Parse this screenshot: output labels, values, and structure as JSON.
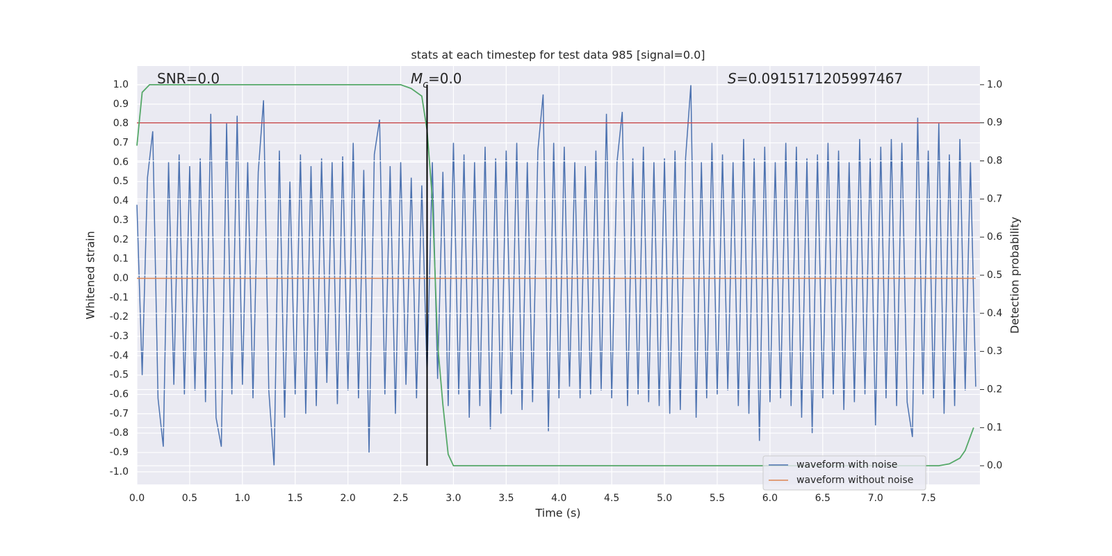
{
  "chart_data": {
    "type": "line",
    "title": "stats at each timestep for test data 985 [signal=0.0]",
    "xlabel": "Time (s)",
    "ylabel": "Whitened strain",
    "y2label": "Detection probability",
    "xlim": [
      0,
      7.99
    ],
    "ylim": [
      -1.065,
      1.097
    ],
    "y2lim": [
      -0.049,
      1.049
    ],
    "grid": true,
    "legend": "lower right",
    "xticks": [
      {
        "value": 0,
        "label": "0.0"
      },
      0.5,
      {
        "value": 1,
        "label": "1.0"
      },
      1.5,
      {
        "value": 2,
        "label": "2.0"
      },
      2.5,
      {
        "value": 3,
        "label": "3.0"
      },
      3.5,
      {
        "value": 4,
        "label": "4.0"
      },
      4.5,
      {
        "value": 5,
        "label": "5.0"
      },
      5.5,
      {
        "value": 6,
        "label": "6.0"
      },
      6.5,
      {
        "value": 7,
        "label": "7.0"
      },
      7.5
    ],
    "yticks": [
      {
        "value": -1,
        "label": "-1.0"
      },
      -0.9,
      -0.8,
      -0.7,
      -0.6,
      -0.5,
      -0.4,
      -0.3,
      -0.2,
      -0.1,
      {
        "value": 0,
        "label": "0.0"
      },
      0.1,
      0.2,
      0.3,
      0.4,
      0.5,
      0.6,
      0.7,
      0.8,
      0.9,
      {
        "value": 1,
        "label": "1.0"
      }
    ],
    "y2ticks": [
      {
        "value": 0,
        "label": "0.0"
      },
      0.1,
      0.2,
      0.3,
      0.4,
      0.5,
      0.6,
      0.7,
      0.8,
      0.9,
      {
        "value": 1,
        "label": "1.0"
      }
    ],
    "annotations": [
      {
        "text": "SNR=0.0"
      },
      {
        "italic": "M",
        "sub": "c",
        "text": "=0.0"
      },
      {
        "italic": "S",
        "text": "=0.0915171205997467"
      }
    ],
    "hlines": [
      {
        "value": 0.9,
        "axis": "y2",
        "color": "#c44e52"
      }
    ],
    "vlines": [
      {
        "x": 2.75,
        "y2": [
          0,
          1
        ],
        "color": "#000000"
      }
    ],
    "series": [
      {
        "name": "waveform with noise",
        "color": "#4c72b0",
        "x": [
          0,
          0.05,
          0.1,
          0.15,
          0.2,
          0.25,
          0.3,
          0.35,
          0.4,
          0.45,
          0.5,
          0.55,
          0.6,
          0.65,
          0.7,
          0.75,
          0.8,
          0.85,
          0.9,
          0.95,
          1,
          1.05,
          1.1,
          1.15,
          1.2,
          1.25,
          1.3,
          1.35,
          1.4,
          1.45,
          1.5,
          1.55,
          1.6,
          1.65,
          1.7,
          1.75,
          1.8,
          1.85,
          1.9,
          1.95,
          2,
          2.05,
          2.1,
          2.15,
          2.2,
          2.25,
          2.3,
          2.35,
          2.4,
          2.45,
          2.5,
          2.55,
          2.6,
          2.65,
          2.7,
          2.75,
          2.8,
          2.85,
          2.9,
          2.95,
          3,
          3.05,
          3.1,
          3.15,
          3.2,
          3.25,
          3.3,
          3.35,
          3.4,
          3.45,
          3.5,
          3.55,
          3.6,
          3.65,
          3.7,
          3.75,
          3.8,
          3.85,
          3.9,
          3.95,
          4,
          4.05,
          4.1,
          4.15,
          4.2,
          4.25,
          4.3,
          4.35,
          4.4,
          4.45,
          4.5,
          4.55,
          4.6,
          4.65,
          4.7,
          4.75,
          4.8,
          4.85,
          4.9,
          4.95,
          5,
          5.05,
          5.1,
          5.15,
          5.2,
          5.25,
          5.3,
          5.35,
          5.4,
          5.45,
          5.5,
          5.55,
          5.6,
          5.65,
          5.7,
          5.75,
          5.8,
          5.85,
          5.9,
          5.95,
          6,
          6.05,
          6.1,
          6.15,
          6.2,
          6.25,
          6.3,
          6.35,
          6.4,
          6.45,
          6.5,
          6.55,
          6.6,
          6.65,
          6.7,
          6.75,
          6.8,
          6.85,
          6.9,
          6.95,
          7,
          7.05,
          7.1,
          7.15,
          7.2,
          7.25,
          7.3,
          7.35,
          7.4,
          7.45,
          7.5,
          7.55,
          7.6,
          7.65,
          7.7,
          7.75,
          7.8,
          7.85,
          7.9,
          7.95
        ],
        "values": [
          0.38,
          -0.5,
          0.52,
          0.76,
          -0.62,
          -0.87,
          0.6,
          -0.55,
          0.64,
          -0.6,
          0.58,
          -0.58,
          0.62,
          -0.64,
          0.85,
          -0.72,
          -0.87,
          0.8,
          -0.6,
          0.84,
          -0.55,
          0.6,
          -0.62,
          0.55,
          0.92,
          -0.58,
          -0.97,
          0.66,
          -0.72,
          0.5,
          -0.6,
          0.64,
          -0.7,
          0.58,
          -0.66,
          0.62,
          -0.54,
          0.6,
          -0.65,
          0.63,
          -0.58,
          0.7,
          -0.62,
          0.56,
          -0.9,
          0.64,
          0.82,
          -0.6,
          0.58,
          -0.7,
          0.6,
          -0.55,
          0.52,
          -0.62,
          0.48,
          -0.5,
          0.6,
          -0.52,
          0.55,
          -0.66,
          0.7,
          -0.6,
          0.64,
          -0.72,
          0.6,
          -0.66,
          0.68,
          -0.78,
          0.62,
          -0.7,
          0.66,
          -0.6,
          0.7,
          -0.68,
          0.6,
          -0.64,
          0.66,
          0.95,
          -0.79,
          0.7,
          -0.62,
          0.68,
          -0.56,
          0.6,
          -0.62,
          0.58,
          -0.6,
          0.66,
          -0.58,
          0.85,
          -0.62,
          0.6,
          0.86,
          -0.66,
          0.62,
          -0.6,
          0.68,
          -0.64,
          0.6,
          -0.66,
          0.62,
          -0.7,
          0.66,
          -0.68,
          0.62,
          1.0,
          -0.72,
          0.6,
          -0.62,
          0.7,
          -0.6,
          0.64,
          -0.58,
          0.6,
          -0.66,
          0.72,
          -0.7,
          0.62,
          -0.84,
          0.68,
          -0.64,
          0.6,
          -0.62,
          0.7,
          -0.66,
          0.68,
          -0.72,
          0.62,
          -0.8,
          0.64,
          -0.62,
          0.7,
          -0.6,
          0.66,
          -0.68,
          0.6,
          -0.64,
          0.72,
          -0.6,
          0.62,
          -0.76,
          0.68,
          -0.62,
          0.72,
          -0.66,
          0.7,
          -0.64,
          -0.82,
          0.83,
          -0.6,
          0.66,
          -0.62,
          0.8,
          -0.7,
          0.64,
          -0.66,
          0.72,
          -0.58,
          0.6,
          -0.56
        ]
      },
      {
        "name": "waveform without noise",
        "color": "#dd8452",
        "x": [
          0,
          7.95
        ],
        "values": [
          0,
          0
        ]
      },
      {
        "color": "#55a868",
        "axis": "y2",
        "x": [
          0,
          0.05,
          0.12,
          0.5,
          1,
          1.5,
          2,
          2.4,
          2.5,
          2.6,
          2.7,
          2.75,
          2.8,
          2.85,
          2.9,
          2.95,
          3,
          3.5,
          4,
          5,
          6,
          7,
          7.5,
          7.6,
          7.7,
          7.8,
          7.85,
          7.93
        ],
        "values": [
          0.84,
          0.98,
          1,
          1,
          1,
          1,
          1,
          1,
          1,
          0.99,
          0.97,
          0.88,
          0.7,
          0.32,
          0.16,
          0.03,
          0,
          0,
          0,
          0,
          0,
          0,
          0,
          0,
          0.005,
          0.02,
          0.04,
          0.1
        ]
      }
    ]
  }
}
